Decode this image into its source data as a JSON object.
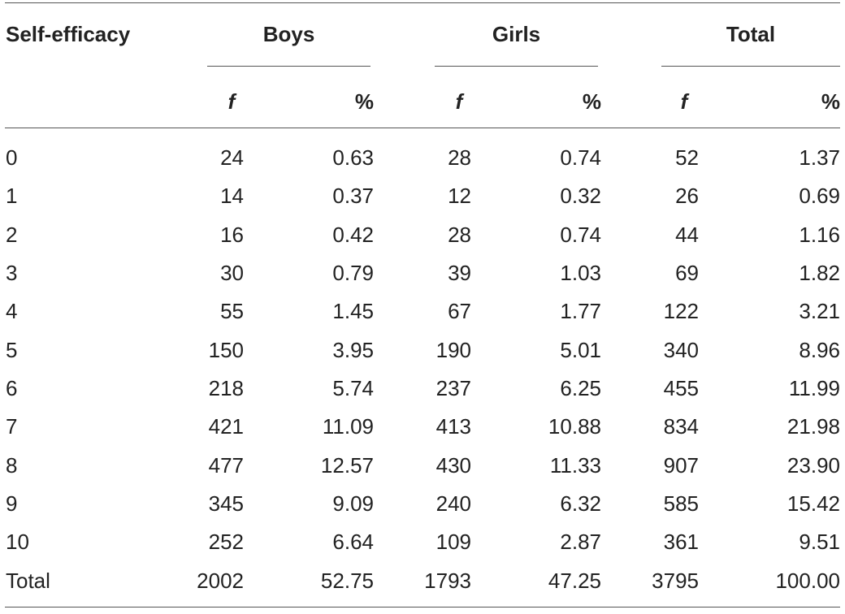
{
  "table": {
    "header": {
      "row_label": "Self-efficacy",
      "groups": [
        "Boys",
        "Girls",
        "Total"
      ],
      "sub": [
        "f",
        "%",
        "f",
        "%",
        "f",
        "%"
      ]
    },
    "rows": [
      [
        "0",
        "24",
        "0.63",
        "28",
        "0.74",
        "52",
        "1.37"
      ],
      [
        "1",
        "14",
        "0.37",
        "12",
        "0.32",
        "26",
        "0.69"
      ],
      [
        "2",
        "16",
        "0.42",
        "28",
        "0.74",
        "44",
        "1.16"
      ],
      [
        "3",
        "30",
        "0.79",
        "39",
        "1.03",
        "69",
        "1.82"
      ],
      [
        "4",
        "55",
        "1.45",
        "67",
        "1.77",
        "122",
        "3.21"
      ],
      [
        "5",
        "150",
        "3.95",
        "190",
        "5.01",
        "340",
        "8.96"
      ],
      [
        "6",
        "218",
        "5.74",
        "237",
        "6.25",
        "455",
        "11.99"
      ],
      [
        "7",
        "421",
        "11.09",
        "413",
        "10.88",
        "834",
        "21.98"
      ],
      [
        "8",
        "477",
        "12.57",
        "430",
        "11.33",
        "907",
        "23.90"
      ],
      [
        "9",
        "345",
        "9.09",
        "240",
        "6.32",
        "585",
        "15.42"
      ],
      [
        "10",
        "252",
        "6.64",
        "109",
        "2.87",
        "361",
        "9.51"
      ],
      [
        "Total",
        "2002",
        "52.75",
        "1793",
        "47.25",
        "3795",
        "100.00"
      ]
    ]
  }
}
